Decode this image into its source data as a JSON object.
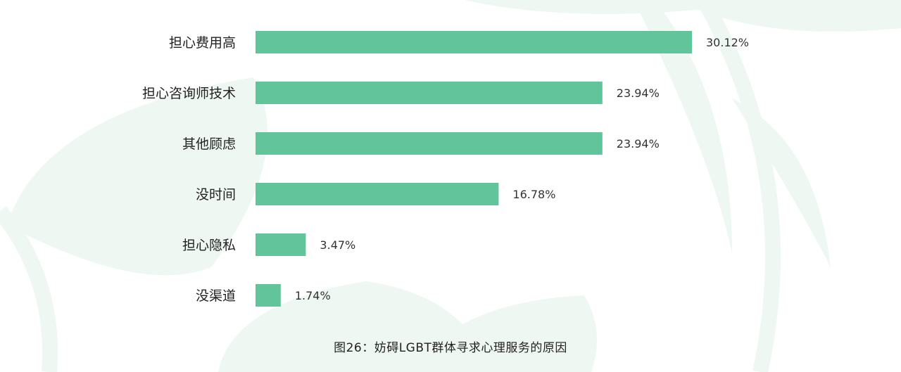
{
  "chart_data": {
    "type": "bar",
    "orientation": "horizontal",
    "categories": [
      "担心费用高",
      "担心咨询师技术",
      "其他顾虑",
      "没时间",
      "担心隐私",
      "没渠道"
    ],
    "values": [
      30.12,
      23.94,
      23.94,
      16.78,
      3.47,
      1.74
    ],
    "value_labels": [
      "30.12%",
      "23.94%",
      "23.94%",
      "16.78%",
      "3.47%",
      "1.74%"
    ],
    "title": "图26：妨碍LGBT群体寻求心理服务的原因",
    "xlabel": "",
    "ylabel": "",
    "xlim": [
      0,
      30.12
    ],
    "grid": false,
    "legend": "none"
  },
  "colors": {
    "bar": "#62c49a",
    "leaf": "#eef7f2",
    "text": "#222222"
  }
}
